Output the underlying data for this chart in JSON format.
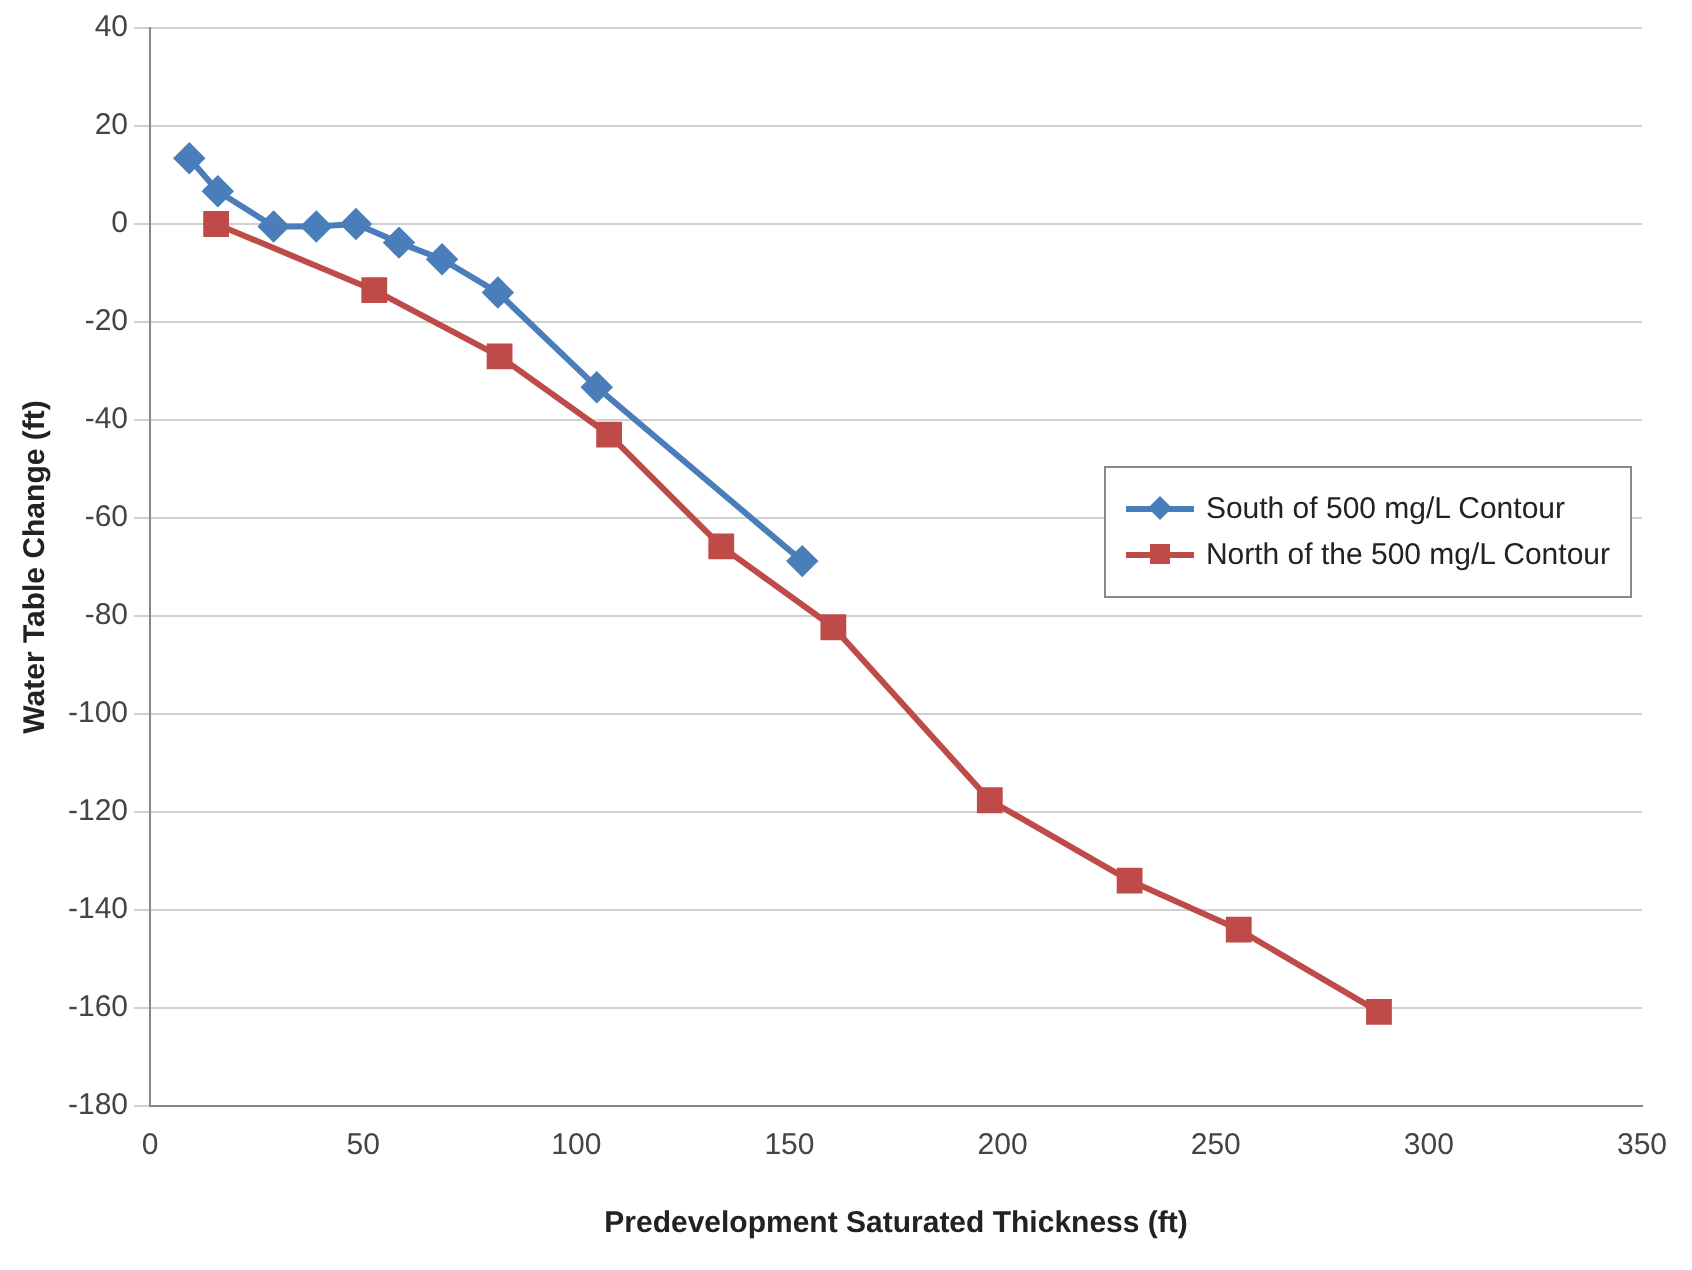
{
  "chart_data": {
    "type": "line",
    "xlabel": "Predevelopment Saturated Thickness (ft)",
    "ylabel": "Water Table Change (ft)",
    "xlim": [
      0,
      350
    ],
    "xticks": [
      0,
      50,
      100,
      150,
      200,
      250,
      300,
      350
    ],
    "ylim": [
      -180,
      40
    ],
    "yticks": [
      -180,
      -160,
      -140,
      -120,
      -100,
      -80,
      -60,
      -40,
      -20,
      0,
      20,
      40
    ],
    "grid": "y",
    "legend": "right",
    "line_style": "solid",
    "series": [
      {
        "name": "South of 500 mg/L Contour",
        "color": "#4a7ebb",
        "marker": "diamond",
        "x": [
          9.2,
          15.9,
          29,
          39,
          48.3,
          58.4,
          68.5,
          81.6,
          104.8,
          153
        ],
        "values": [
          13.4,
          6.7,
          -0.5,
          -0.5,
          0,
          -3.8,
          -7.2,
          -14,
          -33.3,
          -68.8
        ]
      },
      {
        "name": "North of the 500 mg/L Contour",
        "color": "#be4b48",
        "marker": "square",
        "x": [
          15.5,
          52.6,
          82,
          107.7,
          134,
          160.3,
          197,
          229.8,
          255.4,
          288.3
        ],
        "values": [
          0,
          -13.5,
          -27,
          -43,
          -65.8,
          -82.3,
          -117.6,
          -134,
          -144,
          -160.8
        ]
      }
    ]
  }
}
